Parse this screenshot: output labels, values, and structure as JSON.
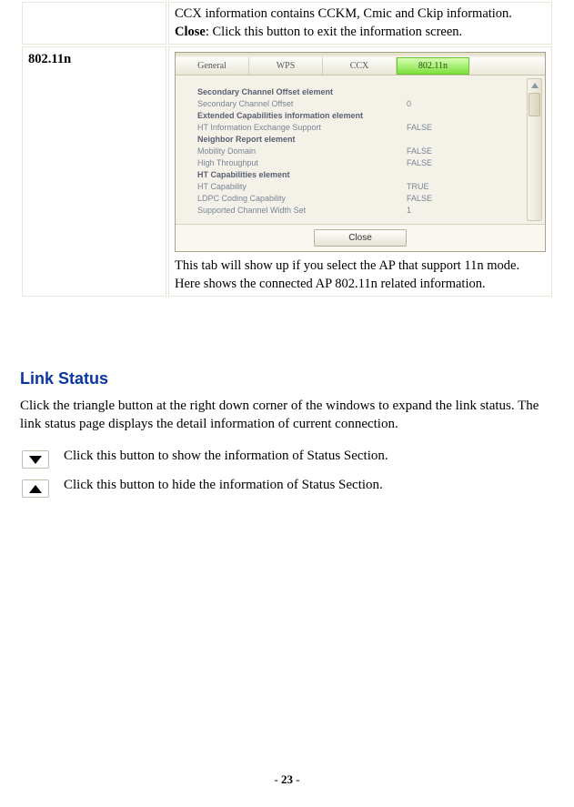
{
  "table": {
    "row1": {
      "text_before": "CCX information contains CCKM, Cmic and Ckip information.",
      "close_label": "Close",
      "close_desc": ": Click this button to exit the information screen."
    },
    "row2": {
      "label": "802.11n",
      "desc": "This tab will show up if you select the AP that support 11n mode. Here shows the connected AP 802.11n related information."
    }
  },
  "shot": {
    "tabs": [
      "General",
      "WPS",
      "CCX",
      "802.11n"
    ],
    "active_index": 3,
    "close_label": "Close",
    "rows": [
      {
        "k": "Secondary Channel Offset element",
        "v": "",
        "bold": true
      },
      {
        "k": "Secondary Channel Offset",
        "v": "0",
        "bold": false
      },
      {
        "k": "Extended Capabilities information element",
        "v": "",
        "bold": true
      },
      {
        "k": "HT Information Exchange Support",
        "v": "FALSE",
        "bold": false
      },
      {
        "k": "Neighbor Report element",
        "v": "",
        "bold": true
      },
      {
        "k": "Mobility Domain",
        "v": "FALSE",
        "bold": false
      },
      {
        "k": "High Throughput",
        "v": "FALSE",
        "bold": false
      },
      {
        "k": "HT Capabilities element",
        "v": "",
        "bold": true
      },
      {
        "k": "HT Capability",
        "v": "TRUE",
        "bold": false
      },
      {
        "k": "LDPC Coding Capability",
        "v": "FALSE",
        "bold": false
      },
      {
        "k": "Supported Channel Width Set",
        "v": "1",
        "bold": false
      }
    ]
  },
  "section": {
    "title": "Link Status",
    "para": "Click the triangle button at the right down corner of the windows to expand the link status. The link status page displays the detail information of current connection.",
    "expand_desc": "Click this button to show the information of Status Section.",
    "collapse_desc": "Click this button to hide the information of Status Section."
  },
  "page_number": "23"
}
